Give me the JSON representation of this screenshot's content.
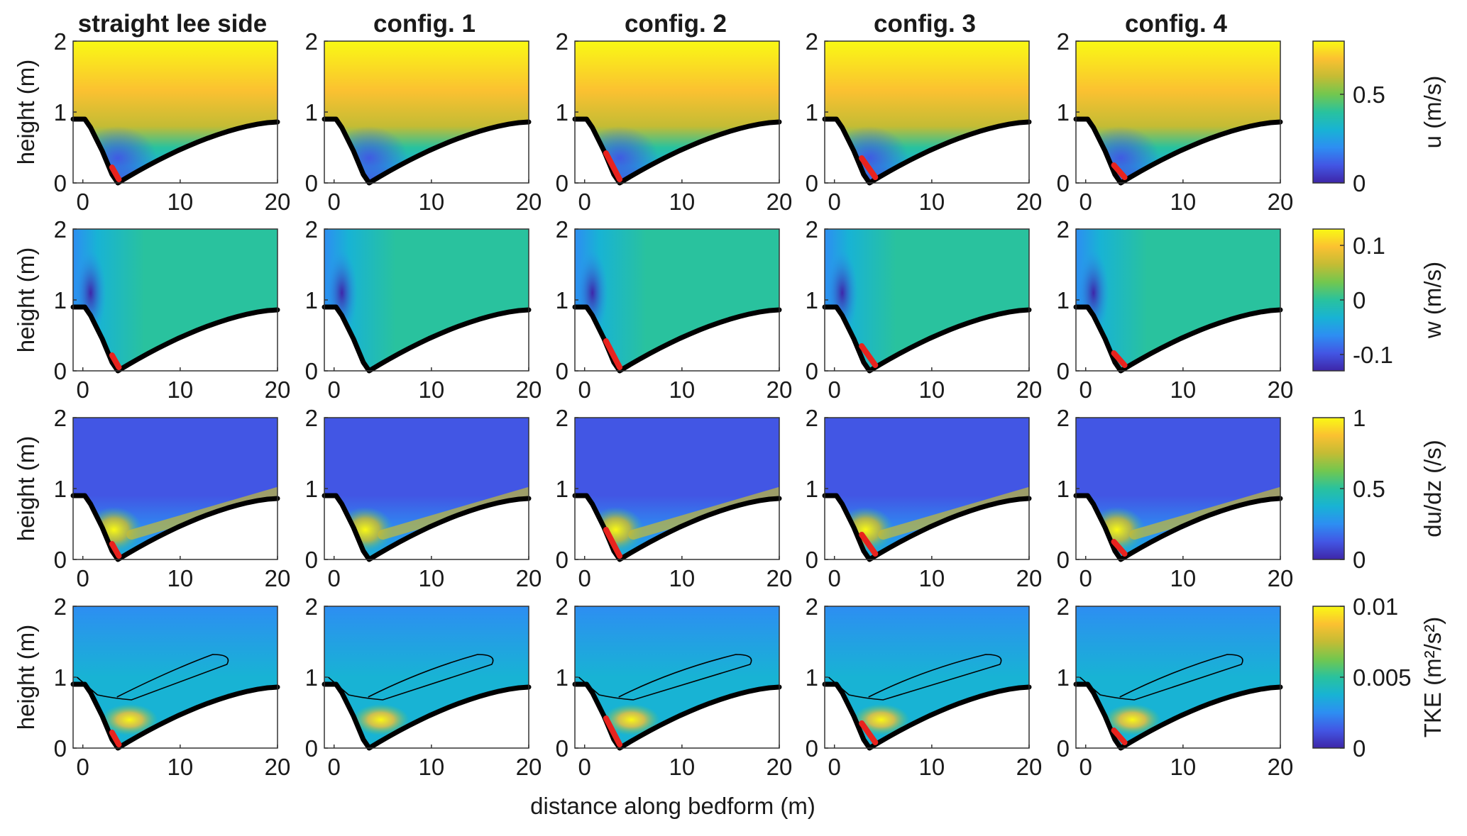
{
  "figure": {
    "column_titles": [
      "straight lee side",
      "config. 1",
      "config. 2",
      "config. 3",
      "config. 4"
    ],
    "ylabel": "height (m)",
    "xlabel": "distance along bedform (m)"
  },
  "colors": {
    "colormap": [
      "#3e26a8",
      "#4256e4",
      "#2d8ef2",
      "#18b3d4",
      "#29c29e",
      "#72c74f",
      "#c4bc34",
      "#fbc131",
      "#f9f914"
    ],
    "bed": "#000000",
    "highlight": "#e8231e",
    "contour": "#000000"
  },
  "chart_data": {
    "type": "heatmap",
    "x_ticks": [
      0,
      10,
      20
    ],
    "y_ticks": [
      0,
      1,
      2
    ],
    "xlim": [
      -1,
      20
    ],
    "ylim": [
      0,
      2
    ],
    "bed_profile": {
      "crest_height": 0.9,
      "trough_x": 3.6,
      "trough_height": 0.0,
      "end_x": 20,
      "end_height": 0.86
    },
    "panels_per_row": 5,
    "columns": [
      "straight lee side",
      "config. 1",
      "config. 2",
      "config. 3",
      "config. 4"
    ],
    "red_segments": [
      {
        "config": "straight lee side",
        "x": [
          3.0,
          3.7
        ],
        "height": [
          0.22,
          0.05
        ]
      },
      {
        "config": "config. 1",
        "x": [],
        "height": []
      },
      {
        "config": "config. 2",
        "x": [
          2.2,
          3.6
        ],
        "height": [
          0.42,
          0.05
        ]
      },
      {
        "config": "config. 3",
        "x": [
          2.8,
          4.2
        ],
        "height": [
          0.35,
          0.08
        ]
      },
      {
        "config": "config. 4",
        "x": [
          2.9,
          4.0
        ],
        "height": [
          0.25,
          0.08
        ]
      }
    ],
    "rows": [
      {
        "variable": "u",
        "colorbar_label": "u (m/s)",
        "clim": [
          0,
          0.8
        ],
        "colorbar_ticks": [
          "0",
          "0.5"
        ],
        "colorbar_tick_values": [
          0,
          0.5
        ]
      },
      {
        "variable": "w",
        "colorbar_label": "w (m/s)",
        "clim": [
          -0.13,
          0.13
        ],
        "colorbar_ticks": [
          "-0.1",
          "0",
          "0.1"
        ],
        "colorbar_tick_values": [
          -0.1,
          0,
          0.1
        ]
      },
      {
        "variable": "du/dz",
        "colorbar_label": "du/dz (/s)",
        "clim": [
          0,
          1
        ],
        "colorbar_ticks": [
          "0",
          "0.5",
          "1"
        ],
        "colorbar_tick_values": [
          0,
          0.5,
          1
        ]
      },
      {
        "variable": "TKE",
        "colorbar_label": "TKE (m²/s²)",
        "clim": [
          0,
          0.01
        ],
        "colorbar_ticks": [
          "0",
          "0.005",
          "0.01"
        ],
        "colorbar_tick_values": [
          0,
          0.005,
          0.01
        ]
      }
    ]
  }
}
